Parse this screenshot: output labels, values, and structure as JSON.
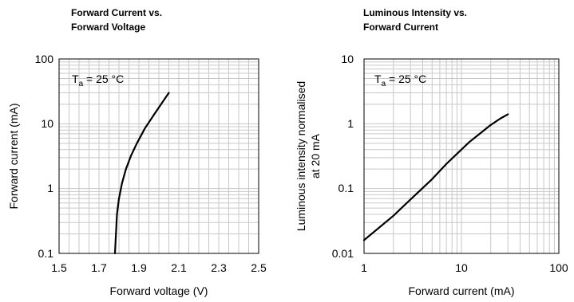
{
  "chart_data": [
    {
      "type": "line",
      "title_lines": [
        "Forward Current vs.",
        "Forward Voltage"
      ],
      "xlabel": "Forward voltage (V)",
      "ylabel": "Forward current (mA)",
      "xscale": "linear",
      "yscale": "log",
      "xlim": [
        1.5,
        2.5
      ],
      "ylim": [
        0.1,
        100
      ],
      "xticks": [
        "1.5",
        "1.7",
        "1.9",
        "2.1",
        "2.3",
        "2.5"
      ],
      "yticks": [
        "100",
        "10",
        "1",
        "0.1"
      ],
      "grid": true,
      "annotation": {
        "prefix": "T",
        "sub": "a",
        "suffix": " = 25 °C"
      },
      "series": [
        {
          "x": [
            1.78,
            1.785,
            1.79,
            1.8,
            1.815,
            1.835,
            1.86,
            1.89,
            1.93,
            1.98,
            2.02,
            2.05
          ],
          "y": [
            0.1,
            0.2,
            0.4,
            0.7,
            1.2,
            2.0,
            3.2,
            5.0,
            8.5,
            14.5,
            22.0,
            30.0
          ]
        }
      ]
    },
    {
      "type": "line",
      "title_lines": [
        "Luminous Intensity vs.",
        "Forward Current"
      ],
      "xlabel": "Forward current (mA)",
      "ylabel_lines": [
        "Luminous intensity normalised",
        "at 20 mA"
      ],
      "xscale": "log",
      "yscale": "log",
      "xlim": [
        1,
        100
      ],
      "ylim": [
        0.01,
        10
      ],
      "xticks": [
        "1",
        "10",
        "100"
      ],
      "yticks": [
        "10",
        "1",
        "0.1",
        "0.01"
      ],
      "grid": true,
      "annotation": {
        "prefix": "T",
        "sub": "a",
        "suffix": " = 25 °C"
      },
      "series": [
        {
          "x": [
            1,
            2,
            3,
            5,
            7,
            10,
            12,
            15,
            20,
            25,
            30
          ],
          "y": [
            0.016,
            0.038,
            0.068,
            0.14,
            0.24,
            0.4,
            0.52,
            0.68,
            0.96,
            1.2,
            1.4
          ]
        }
      ]
    }
  ]
}
